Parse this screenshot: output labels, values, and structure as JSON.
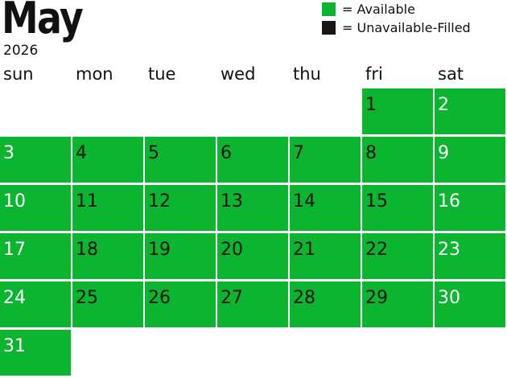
{
  "header": {
    "month": "May",
    "year": "2026"
  },
  "legend": [
    {
      "label": "= Available",
      "color": "#0cb52f"
    },
    {
      "label": "= Unavailable-Filled",
      "color": "#17171a"
    }
  ],
  "weekdays": [
    "sun",
    "mon",
    "tue",
    "wed",
    "thu",
    "fri",
    "sat"
  ],
  "calendar": {
    "first_weekday_index": 5,
    "days_in_month": 31,
    "available_color": "#0cb52f",
    "status": "all days available",
    "days": [
      "1",
      "2",
      "3",
      "4",
      "5",
      "6",
      "7",
      "8",
      "9",
      "10",
      "11",
      "12",
      "13",
      "14",
      "15",
      "16",
      "17",
      "18",
      "19",
      "20",
      "21",
      "22",
      "23",
      "24",
      "25",
      "26",
      "27",
      "28",
      "29",
      "30",
      "31"
    ]
  }
}
